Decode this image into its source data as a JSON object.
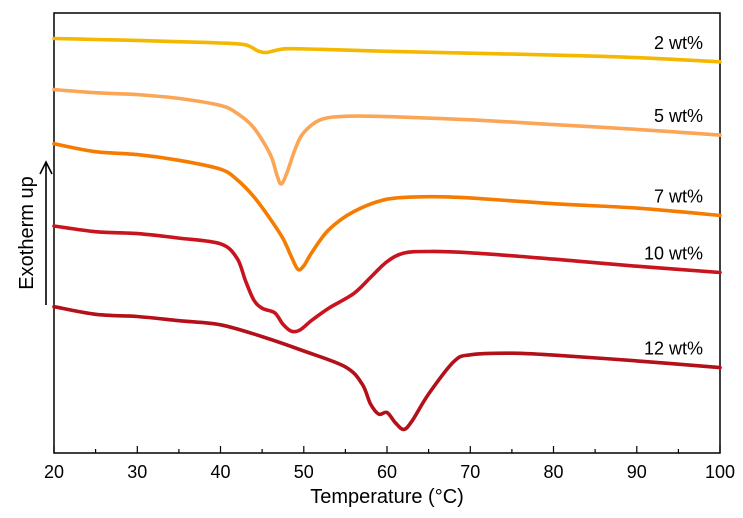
{
  "chart_data": {
    "type": "line",
    "xlabel": "Temperature (°C)",
    "ylabel": "Exotherm up",
    "xlim": [
      20,
      100
    ],
    "xticks": [
      20,
      30,
      40,
      50,
      60,
      70,
      80,
      90,
      100
    ],
    "x_minor_step": 5,
    "y_axis_values_shown": false,
    "grid": false,
    "legend": "none (curves labeled directly at right)",
    "series": [
      {
        "name": "2 wt%",
        "color": "#f5b800",
        "points": [
          [
            20,
            0.0
          ],
          [
            25,
            -0.3
          ],
          [
            30,
            -0.6
          ],
          [
            35,
            -1.0
          ],
          [
            40,
            -1.4
          ],
          [
            43,
            -2.0
          ],
          [
            44.5,
            -3.9
          ],
          [
            45.5,
            -4.4
          ],
          [
            46.5,
            -3.8
          ],
          [
            48,
            -3.2
          ],
          [
            52,
            -3.4
          ],
          [
            60,
            -4.0
          ],
          [
            70,
            -4.6
          ],
          [
            80,
            -5.2
          ],
          [
            90,
            -6.0
          ],
          [
            100,
            -7.3
          ]
        ]
      },
      {
        "name": "5 wt%",
        "color": "#fba656",
        "points": [
          [
            20,
            -16.0
          ],
          [
            25,
            -17.0
          ],
          [
            30,
            -17.6
          ],
          [
            35,
            -18.8
          ],
          [
            40,
            -21.0
          ],
          [
            42,
            -23.5
          ],
          [
            44,
            -28.0
          ],
          [
            46,
            -36.5
          ],
          [
            46.8,
            -43.0
          ],
          [
            47.3,
            -45.6
          ],
          [
            48,
            -42.0
          ],
          [
            49,
            -34.5
          ],
          [
            50,
            -29.5
          ],
          [
            52,
            -25.5
          ],
          [
            55,
            -24.4
          ],
          [
            60,
            -24.5
          ],
          [
            70,
            -25.5
          ],
          [
            80,
            -27.0
          ],
          [
            90,
            -28.5
          ],
          [
            100,
            -30.3
          ]
        ]
      },
      {
        "name": "7 wt%",
        "color": "#f57c00",
        "points": [
          [
            20,
            -33.0
          ],
          [
            25,
            -35.5
          ],
          [
            30,
            -36.4
          ],
          [
            35,
            -38.2
          ],
          [
            40,
            -41.0
          ],
          [
            42,
            -44.3
          ],
          [
            44,
            -49.6
          ],
          [
            46,
            -56.7
          ],
          [
            47.5,
            -62.7
          ],
          [
            48.5,
            -68.4
          ],
          [
            49.3,
            -72.4
          ],
          [
            50,
            -71.3
          ],
          [
            51,
            -67.0
          ],
          [
            53,
            -60.0
          ],
          [
            56,
            -54.3
          ],
          [
            60,
            -50.4
          ],
          [
            65,
            -49.6
          ],
          [
            70,
            -50.0
          ],
          [
            80,
            -51.8
          ],
          [
            90,
            -53.2
          ],
          [
            100,
            -55.5
          ]
        ]
      },
      {
        "name": "10 wt%",
        "color": "#c8141e",
        "points": [
          [
            20,
            -58.8
          ],
          [
            25,
            -60.6
          ],
          [
            30,
            -61.2
          ],
          [
            35,
            -62.6
          ],
          [
            40,
            -64.4
          ],
          [
            42,
            -69.0
          ],
          [
            43,
            -76.0
          ],
          [
            44,
            -82.0
          ],
          [
            45,
            -84.6
          ],
          [
            46.5,
            -86.0
          ],
          [
            47.5,
            -89.6
          ],
          [
            48.5,
            -91.8
          ],
          [
            49.5,
            -91.5
          ],
          [
            51,
            -88.3
          ],
          [
            53,
            -84.6
          ],
          [
            56,
            -80.0
          ],
          [
            58,
            -75.0
          ],
          [
            60,
            -70.0
          ],
          [
            62,
            -67.3
          ],
          [
            65,
            -66.8
          ],
          [
            70,
            -67.2
          ],
          [
            80,
            -69.2
          ],
          [
            90,
            -71.4
          ],
          [
            100,
            -73.4
          ]
        ]
      },
      {
        "name": "12 wt%",
        "color": "#b4101a",
        "points": [
          [
            20,
            -84.1
          ],
          [
            25,
            -86.5
          ],
          [
            30,
            -87.2
          ],
          [
            35,
            -88.5
          ],
          [
            40,
            -89.8
          ],
          [
            45,
            -93.5
          ],
          [
            50,
            -98.0
          ],
          [
            55,
            -103.0
          ],
          [
            57,
            -108.3
          ],
          [
            58,
            -114.5
          ],
          [
            59,
            -117.8
          ],
          [
            60,
            -117.3
          ],
          [
            61,
            -120.5
          ],
          [
            62,
            -122.6
          ],
          [
            63,
            -120.0
          ],
          [
            65,
            -111.5
          ],
          [
            68,
            -101.4
          ],
          [
            70,
            -99.2
          ],
          [
            75,
            -98.7
          ],
          [
            80,
            -99.3
          ],
          [
            90,
            -101.1
          ],
          [
            100,
            -103.2
          ]
        ]
      }
    ],
    "curve_labels": [
      "2 wt%",
      "5 wt%",
      "7 wt%",
      "10 wt%",
      "12 wt%"
    ],
    "ylim": [
      -130,
      8
    ]
  }
}
